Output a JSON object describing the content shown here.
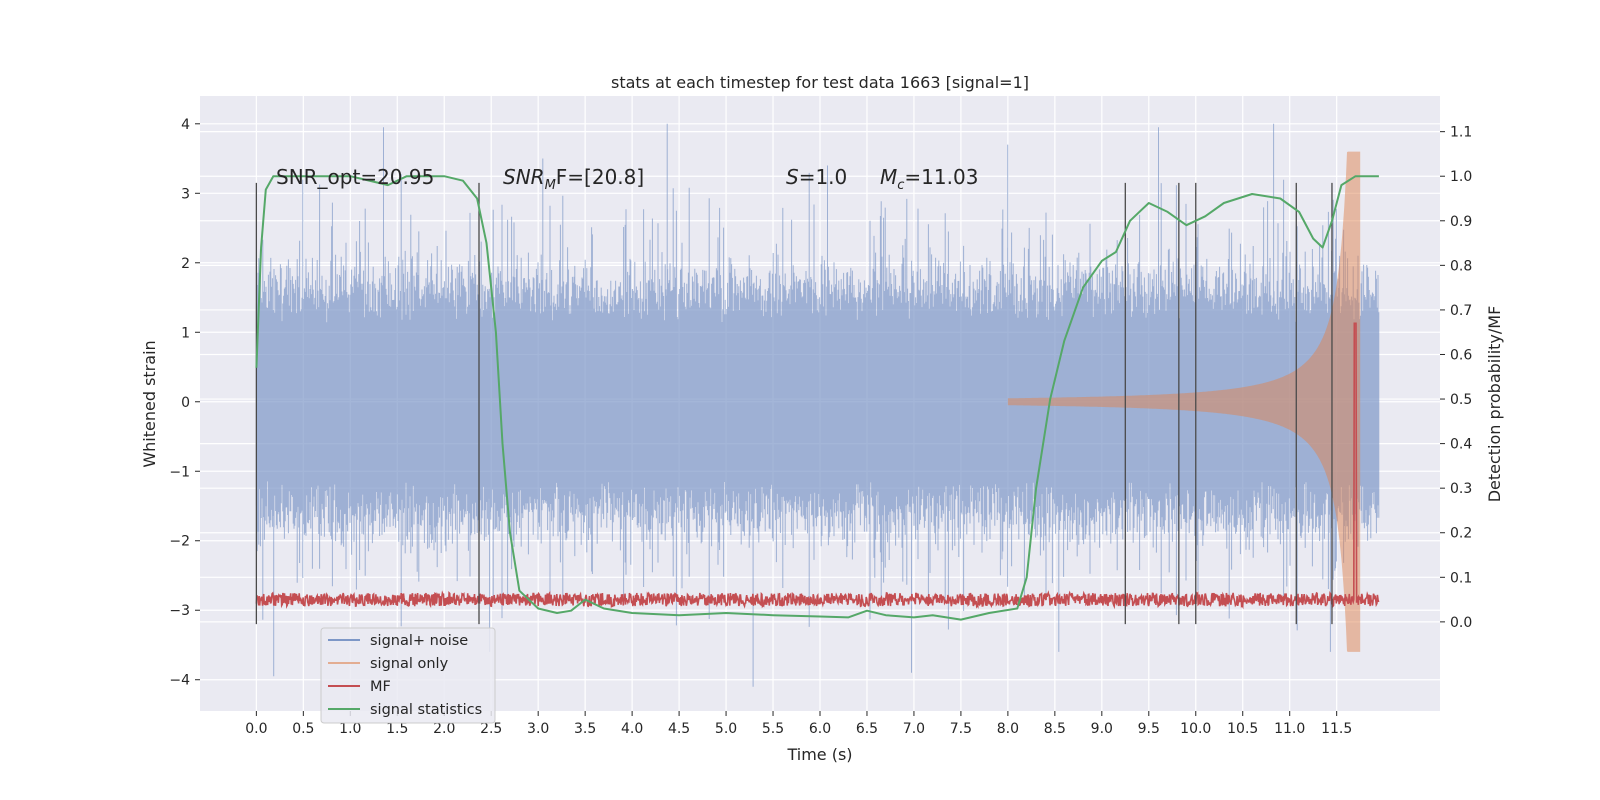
{
  "chart_data": {
    "type": "line",
    "title": "stats at each timestep for test data 1663 [signal=1]",
    "xlabel": "Time (s)",
    "ylabel": "Whitened strain",
    "ylabel_right": "Detection probability/MF",
    "xlim": [
      -0.6,
      12.6
    ],
    "ylim": [
      -4.45,
      4.4
    ],
    "ylim_right": [
      -0.2,
      1.18
    ],
    "x_ticks": [
      "0.0",
      "0.5",
      "1.0",
      "1.5",
      "2.0",
      "2.5",
      "3.0",
      "3.5",
      "4.0",
      "4.5",
      "5.0",
      "5.5",
      "6.0",
      "6.5",
      "7.0",
      "7.5",
      "8.0",
      "8.5",
      "9.0",
      "9.5",
      "10.0",
      "10.5",
      "11.0",
      "11.5"
    ],
    "y_ticks": [
      "4",
      "3",
      "2",
      "1",
      "0",
      "−1",
      "−2",
      "−3",
      "−4"
    ],
    "y_ticks_right": [
      "1.1",
      "1.0",
      "0.9",
      "0.8",
      "0.7",
      "0.6",
      "0.5",
      "0.4",
      "0.3",
      "0.2",
      "0.1",
      "0.0"
    ],
    "grid": true,
    "legend_placement": "lower-left",
    "annotations": {
      "snr_opt": "SNR_opt=20.95",
      "snr_mf_prefix": "SNR",
      "snr_mf_sub": "M",
      "snr_mf_suffix": "F=[20.8]",
      "s_var": "S",
      "s_value": "=1.0",
      "mc_var": "M",
      "mc_sub": "c",
      "mc_value": "=11.03"
    },
    "event_markers_x": [
      0.0,
      2.37,
      9.25,
      9.82,
      10.0,
      11.07,
      11.45
    ],
    "signal_end_x": 11.75,
    "series": [
      {
        "name": "signal+ noise",
        "color": "#7d97c7",
        "x_range": [
          0.0,
          11.95
        ],
        "typical_amplitude": 1.9,
        "peak_values": [
          -3.95,
          3.95,
          -3.6,
          3.5,
          4.0,
          -4.1,
          3.4,
          -3.9,
          3.7,
          -3.6,
          3.95,
          4.0,
          -3.6
        ]
      },
      {
        "name": "signal only",
        "color": "#dd8452",
        "x_range": [
          8.0,
          11.75
        ],
        "description_values": {
          "amplitude_start": 0.05,
          "amplitude_end": 3.6
        }
      },
      {
        "name": "MF",
        "color": "#c44e52",
        "axis": "right",
        "baseline": 0.05,
        "x_range": [
          0.0,
          11.95
        ],
        "peak": {
          "x": 11.7,
          "y": 0.67
        }
      },
      {
        "name": "signal statistics",
        "color": "#55a868",
        "axis": "right",
        "points": [
          [
            0.0,
            0.57
          ],
          [
            0.05,
            0.84
          ],
          [
            0.1,
            0.97
          ],
          [
            0.18,
            1.0
          ],
          [
            0.5,
            1.0
          ],
          [
            1.0,
            1.0
          ],
          [
            1.4,
            0.98
          ],
          [
            1.6,
            1.0
          ],
          [
            2.0,
            1.0
          ],
          [
            2.2,
            0.99
          ],
          [
            2.35,
            0.95
          ],
          [
            2.45,
            0.85
          ],
          [
            2.55,
            0.65
          ],
          [
            2.62,
            0.4
          ],
          [
            2.7,
            0.2
          ],
          [
            2.8,
            0.07
          ],
          [
            3.0,
            0.03
          ],
          [
            3.2,
            0.02
          ],
          [
            3.35,
            0.025
          ],
          [
            3.5,
            0.05
          ],
          [
            3.7,
            0.03
          ],
          [
            4.0,
            0.02
          ],
          [
            4.5,
            0.015
          ],
          [
            5.0,
            0.02
          ],
          [
            5.5,
            0.015
          ],
          [
            6.0,
            0.012
          ],
          [
            6.3,
            0.01
          ],
          [
            6.5,
            0.025
          ],
          [
            6.7,
            0.015
          ],
          [
            7.0,
            0.01
          ],
          [
            7.2,
            0.015
          ],
          [
            7.5,
            0.005
          ],
          [
            7.8,
            0.02
          ],
          [
            8.1,
            0.03
          ],
          [
            8.2,
            0.1
          ],
          [
            8.3,
            0.3
          ],
          [
            8.45,
            0.5
          ],
          [
            8.6,
            0.63
          ],
          [
            8.8,
            0.75
          ],
          [
            9.0,
            0.81
          ],
          [
            9.15,
            0.83
          ],
          [
            9.3,
            0.9
          ],
          [
            9.5,
            0.94
          ],
          [
            9.7,
            0.92
          ],
          [
            9.9,
            0.89
          ],
          [
            10.1,
            0.91
          ],
          [
            10.3,
            0.94
          ],
          [
            10.6,
            0.96
          ],
          [
            10.9,
            0.95
          ],
          [
            11.1,
            0.92
          ],
          [
            11.25,
            0.86
          ],
          [
            11.35,
            0.84
          ],
          [
            11.45,
            0.9
          ],
          [
            11.55,
            0.98
          ],
          [
            11.7,
            1.0
          ],
          [
            11.95,
            1.0
          ]
        ]
      }
    ]
  }
}
